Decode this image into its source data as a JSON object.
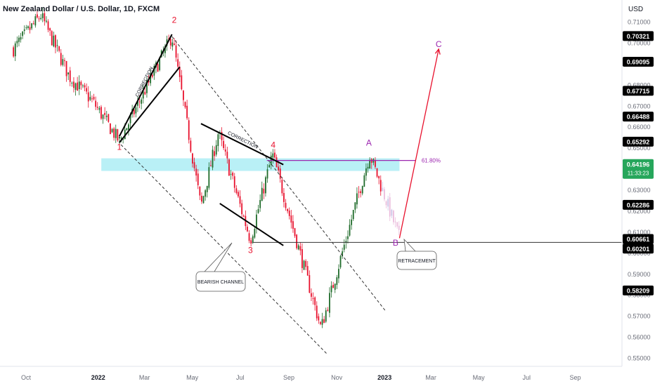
{
  "header": {
    "symbol_title": "New Zealand Dollar / U.S. Dollar, 1D, FXCM",
    "currency": "USD"
  },
  "colors": {
    "up": "#1f6b2a",
    "down": "#e8112d",
    "wave_label": "#e8112d",
    "abc_label": "#9c27b0",
    "fib_line": "#9c27b0",
    "zone_fill": "#7fe3ee",
    "price_tag_bg": "#000000",
    "current_tag_bg": "#26a65b",
    "projection": "#e8112d"
  },
  "chart_data": {
    "type": "candlestick",
    "title": "New Zealand Dollar / U.S. Dollar, 1D, FXCM",
    "x_ticks": [
      "Oct",
      "2022",
      "Mar",
      "May",
      "Jul",
      "Sep",
      "Nov",
      "2023",
      "Mar",
      "May",
      "Jul",
      "Sep"
    ],
    "y_ticks": [
      "0.71000",
      "0.70000",
      "0.69000",
      "0.68000",
      "0.67000",
      "0.66000",
      "0.65000",
      "0.64000",
      "0.63000",
      "0.62000",
      "0.61000",
      "0.60000",
      "0.59000",
      "0.58000",
      "0.57000",
      "0.56000",
      "0.55000"
    ],
    "ylim": [
      0.548,
      0.714
    ],
    "price_tags": [
      "0.70321",
      "0.69095",
      "0.67715",
      "0.66488",
      "0.65292",
      "0.62286",
      "0.60661",
      "0.60201",
      "0.58209"
    ],
    "current_price": {
      "value": "0.64196",
      "countdown": "11:33:23"
    },
    "waypoints": [
      {
        "date": "2021-09-15",
        "price": 0.697
      },
      {
        "date": "2021-10-20",
        "price": 0.713
      },
      {
        "date": "2021-11-25",
        "price": 0.684
      },
      {
        "date": "2021-12-25",
        "price": 0.672
      },
      {
        "date": "2022-01-28",
        "price": 0.653
      },
      {
        "date": "2022-04-05",
        "price": 0.7032
      },
      {
        "date": "2022-05-12",
        "price": 0.622
      },
      {
        "date": "2022-06-03",
        "price": 0.657
      },
      {
        "date": "2022-07-14",
        "price": 0.6062
      },
      {
        "date": "2022-08-11",
        "price": 0.647
      },
      {
        "date": "2022-10-12",
        "price": 0.564
      },
      {
        "date": "2022-12-13",
        "price": 0.647
      },
      {
        "date": "2023-01-20",
        "price": 0.607
      }
    ],
    "wave_labels": [
      {
        "text": "1",
        "date": "2022-01-28",
        "price": 0.649
      },
      {
        "text": "2",
        "date": "2022-04-08",
        "price": 0.7095
      },
      {
        "text": "3",
        "date": "2022-07-14",
        "price": 0.6
      },
      {
        "text": "4",
        "date": "2022-08-12",
        "price": 0.65
      },
      {
        "text": "A",
        "date": "2022-12-12",
        "price": 0.651
      },
      {
        "text": "B",
        "date": "2023-01-15",
        "price": 0.6035
      },
      {
        "text": "C",
        "date": "2023-03-11",
        "price": 0.698
      }
    ],
    "annotations": {
      "fib_level": {
        "label": "61.80%",
        "price": 0.644,
        "start": "2022-08-04",
        "end": "2023-02-10"
      },
      "resistance_zone": {
        "top": 0.645,
        "bottom": 0.639,
        "start": "2022-01-05",
        "end": "2023-01-20"
      },
      "support_line": {
        "price": 0.605,
        "start": "2022-07-16"
      },
      "corrections": [
        {
          "label": "CORRECTION",
          "upper": [
            [
              "2022-01-28",
              0.6555
            ],
            [
              "2022-04-05",
              0.704
            ]
          ],
          "lower": [
            [
              "2022-01-28",
              0.6525
            ],
            [
              "2022-04-15",
              0.6885
            ]
          ]
        },
        {
          "label": "CORRECTION",
          "upper": [
            [
              "2022-05-12",
              0.6615
            ],
            [
              "2022-08-25",
              0.642
            ]
          ],
          "lower": [
            [
              "2022-06-05",
              0.6235
            ],
            [
              "2022-08-25",
              0.6035
            ]
          ]
        }
      ],
      "bearish_channel": {
        "label": "BEARISH CHANNEL",
        "upper": [
          [
            "2022-04-05",
            0.703
          ],
          [
            "2022-12-10",
            0.5835
          ]
        ],
        "lower": [
          [
            "2022-01-30",
            0.6515
          ],
          [
            "2022-10-22",
            0.551
          ]
        ]
      },
      "retracement_box": {
        "label": "RETRACEMENT"
      },
      "projection": {
        "from": [
          "2023-01-20",
          0.607
        ],
        "to": [
          "2023-03-11",
          0.697
        ]
      }
    }
  }
}
